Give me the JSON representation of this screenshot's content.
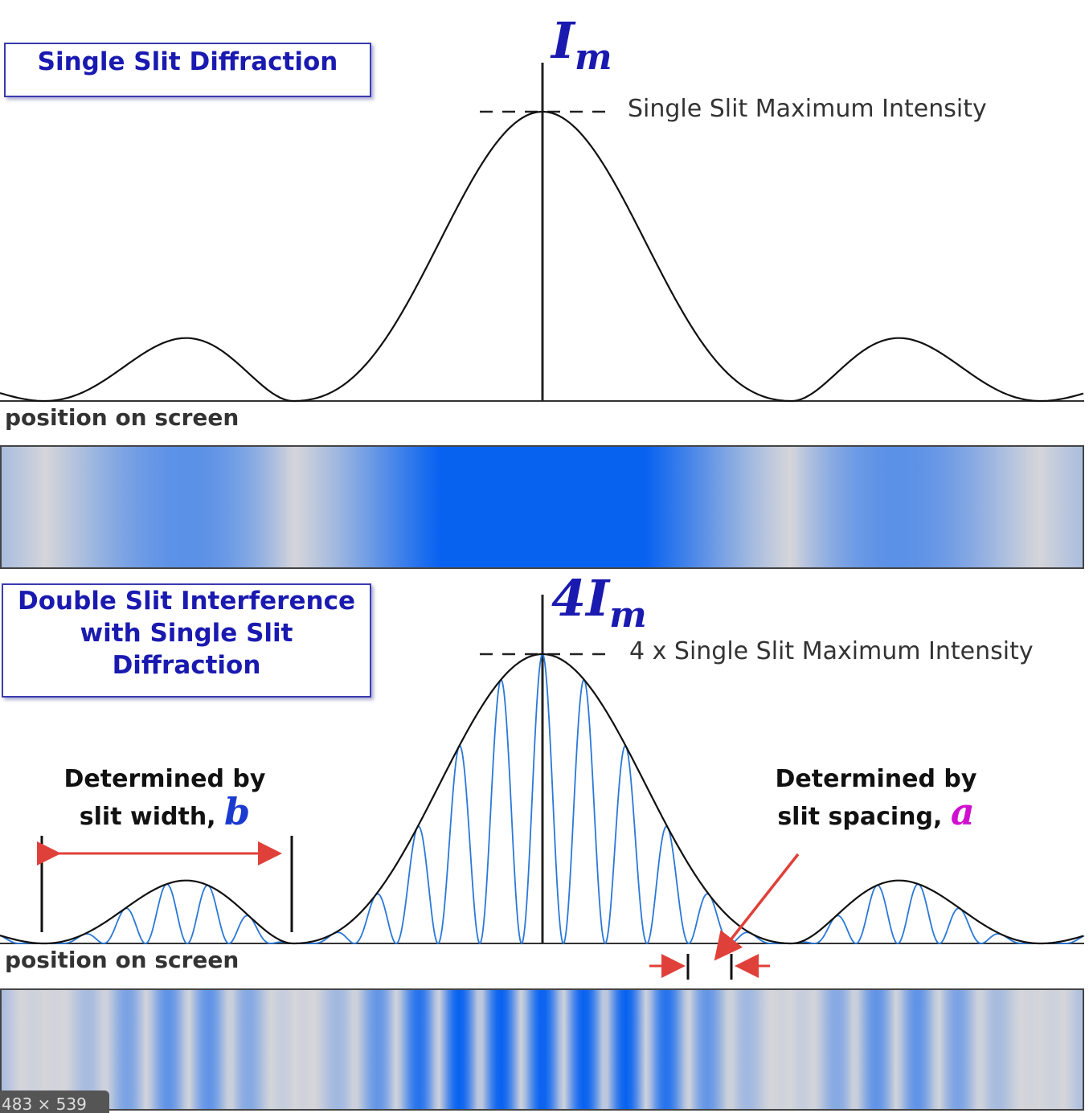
{
  "top_panel": {
    "title": "Single Slit Diffraction",
    "peak_symbol": "I",
    "peak_subscript": "m",
    "peak_note": "Single Slit Maximum Intensity",
    "axis_label": "position on screen"
  },
  "bottom_panel": {
    "title_lines": [
      "Double Slit Interference",
      "with Single Slit",
      "Diffraction"
    ],
    "peak_symbol": "4I",
    "peak_subscript": "m",
    "peak_note": "4 x Single Slit Maximum Intensity",
    "axis_label": "position on screen",
    "left_note_line1": "Determined by",
    "left_note_line2": "slit width,",
    "left_symbol": "b",
    "right_note_line1": "Determined by",
    "right_note_line2": "slit spacing,",
    "right_symbol": "a"
  },
  "size_badge": "483 × 539",
  "colors": {
    "title_text": "#1a1ab0",
    "fringe_blue": "#0a63f0",
    "envelope": "#111111",
    "arrow_red": "#e0403a",
    "symbol_a": "#d010d0",
    "symbol_b": "#1a3ad0"
  }
}
